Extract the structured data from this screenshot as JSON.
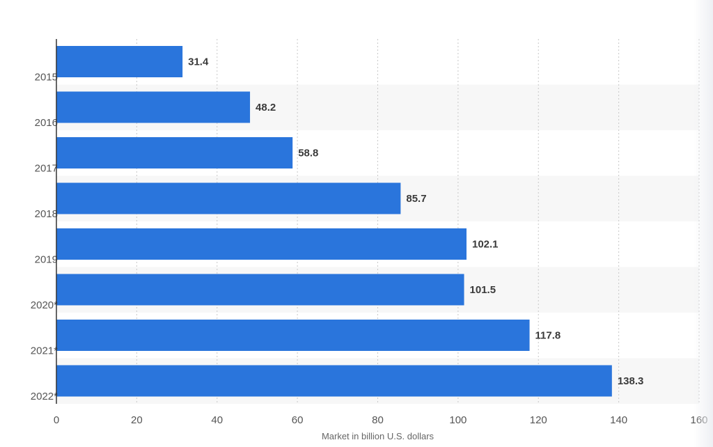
{
  "chart_data": {
    "type": "bar",
    "orientation": "horizontal",
    "categories": [
      "2015",
      "2016",
      "2017",
      "2018",
      "2019",
      "2020*",
      "2021*",
      "2022*"
    ],
    "values": [
      31.4,
      48.2,
      58.8,
      85.7,
      102.1,
      101.5,
      117.8,
      138.3
    ],
    "value_labels": [
      "31.4",
      "48.2",
      "58.8",
      "85.7",
      "102.1",
      "101.5",
      "117.8",
      "138.3"
    ],
    "xlabel": "Market in billion U.S. dollars",
    "ylabel": "",
    "xlim": [
      0,
      160
    ],
    "xticks": [
      "0",
      "20",
      "40",
      "60",
      "80",
      "100",
      "120",
      "140",
      "160"
    ],
    "grid": true,
    "colors": {
      "bar": "#2a75dc",
      "band_alt": "#f7f7f7",
      "grid": "#c8c8c8",
      "axis": "#333333"
    }
  }
}
